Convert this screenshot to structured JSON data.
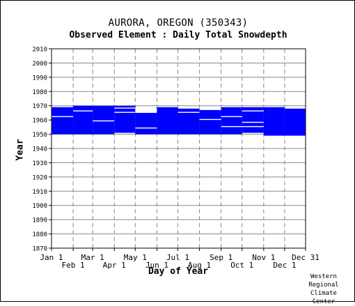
{
  "chart_data": {
    "type": "heatmap",
    "title": "AURORA, OREGON   (350343)",
    "subtitle": "Observed Element : Daily Total Snowdepth",
    "xlabel": "Day of Year",
    "ylabel": "Year",
    "ylim": [
      1870,
      2010
    ],
    "yticks": [
      2010,
      2000,
      1990,
      1980,
      1970,
      1960,
      1950,
      1940,
      1930,
      1920,
      1910,
      1900,
      1890,
      1880,
      1870
    ],
    "xlim": [
      1,
      365
    ],
    "xticks_upper": [
      {
        "label": "Jan 1",
        "day": 1
      },
      {
        "label": "Mar 1",
        "day": 60
      },
      {
        "label": "May 1",
        "day": 121
      },
      {
        "label": "Jul 1",
        "day": 182
      },
      {
        "label": "Sep 1",
        "day": 244
      },
      {
        "label": "Nov 1",
        "day": 305
      },
      {
        "label": "Dec 31",
        "day": 365
      }
    ],
    "xticks_lower": [
      {
        "label": "Feb 1",
        "day": 32
      },
      {
        "label": "Apr 1",
        "day": 91
      },
      {
        "label": "Jun 1",
        "day": 152
      },
      {
        "label": "Aug 1",
        "day": 213
      },
      {
        "label": "Oct 1",
        "day": 274
      },
      {
        "label": "Dec 1",
        "day": 335
      }
    ],
    "grid": true,
    "data_color": "#0000ff",
    "observed_periods": [
      {
        "start_day": 1,
        "end_day": 32,
        "year_start": 1950,
        "year_end": 1968
      },
      {
        "start_day": 32,
        "end_day": 60,
        "year_start": 1950,
        "year_end": 1969
      },
      {
        "start_day": 60,
        "end_day": 91,
        "year_start": 1950,
        "year_end": 1969
      },
      {
        "start_day": 91,
        "end_day": 121,
        "year_start": 1951,
        "year_end": 1969
      },
      {
        "start_day": 121,
        "end_day": 152,
        "year_start": 1950,
        "year_end": 1964
      },
      {
        "start_day": 152,
        "end_day": 182,
        "year_start": 1950,
        "year_end": 1968
      },
      {
        "start_day": 182,
        "end_day": 213,
        "year_start": 1950,
        "year_end": 1967
      },
      {
        "start_day": 213,
        "end_day": 244,
        "year_start": 1950,
        "year_end": 1966
      },
      {
        "start_day": 244,
        "end_day": 274,
        "year_start": 1950,
        "year_end": 1968
      },
      {
        "start_day": 274,
        "end_day": 305,
        "year_start": 1951,
        "year_end": 1968
      },
      {
        "start_day": 305,
        "end_day": 335,
        "year_start": 1949,
        "year_end": 1968
      },
      {
        "start_day": 335,
        "end_day": 365,
        "year_start": 1949,
        "year_end": 1967
      }
    ],
    "missing_gaps": [
      {
        "start_day": 32,
        "end_day": 60,
        "year": 1966
      },
      {
        "start_day": 1,
        "end_day": 32,
        "year": 1962
      },
      {
        "start_day": 60,
        "end_day": 91,
        "year": 1959
      },
      {
        "start_day": 91,
        "end_day": 121,
        "year": 1965
      },
      {
        "start_day": 91,
        "end_day": 121,
        "year": 1968
      },
      {
        "start_day": 182,
        "end_day": 213,
        "year": 1965
      },
      {
        "start_day": 244,
        "end_day": 274,
        "year": 1955
      },
      {
        "start_day": 244,
        "end_day": 274,
        "year": 1962
      },
      {
        "start_day": 274,
        "end_day": 305,
        "year": 1966
      },
      {
        "start_day": 274,
        "end_day": 305,
        "year": 1958
      },
      {
        "start_day": 274,
        "end_day": 305,
        "year": 1955
      },
      {
        "start_day": 121,
        "end_day": 152,
        "year": 1954
      },
      {
        "start_day": 213,
        "end_day": 244,
        "year": 1960
      }
    ]
  },
  "credit": [
    "Western",
    "Regional",
    "Climate",
    "Center"
  ]
}
